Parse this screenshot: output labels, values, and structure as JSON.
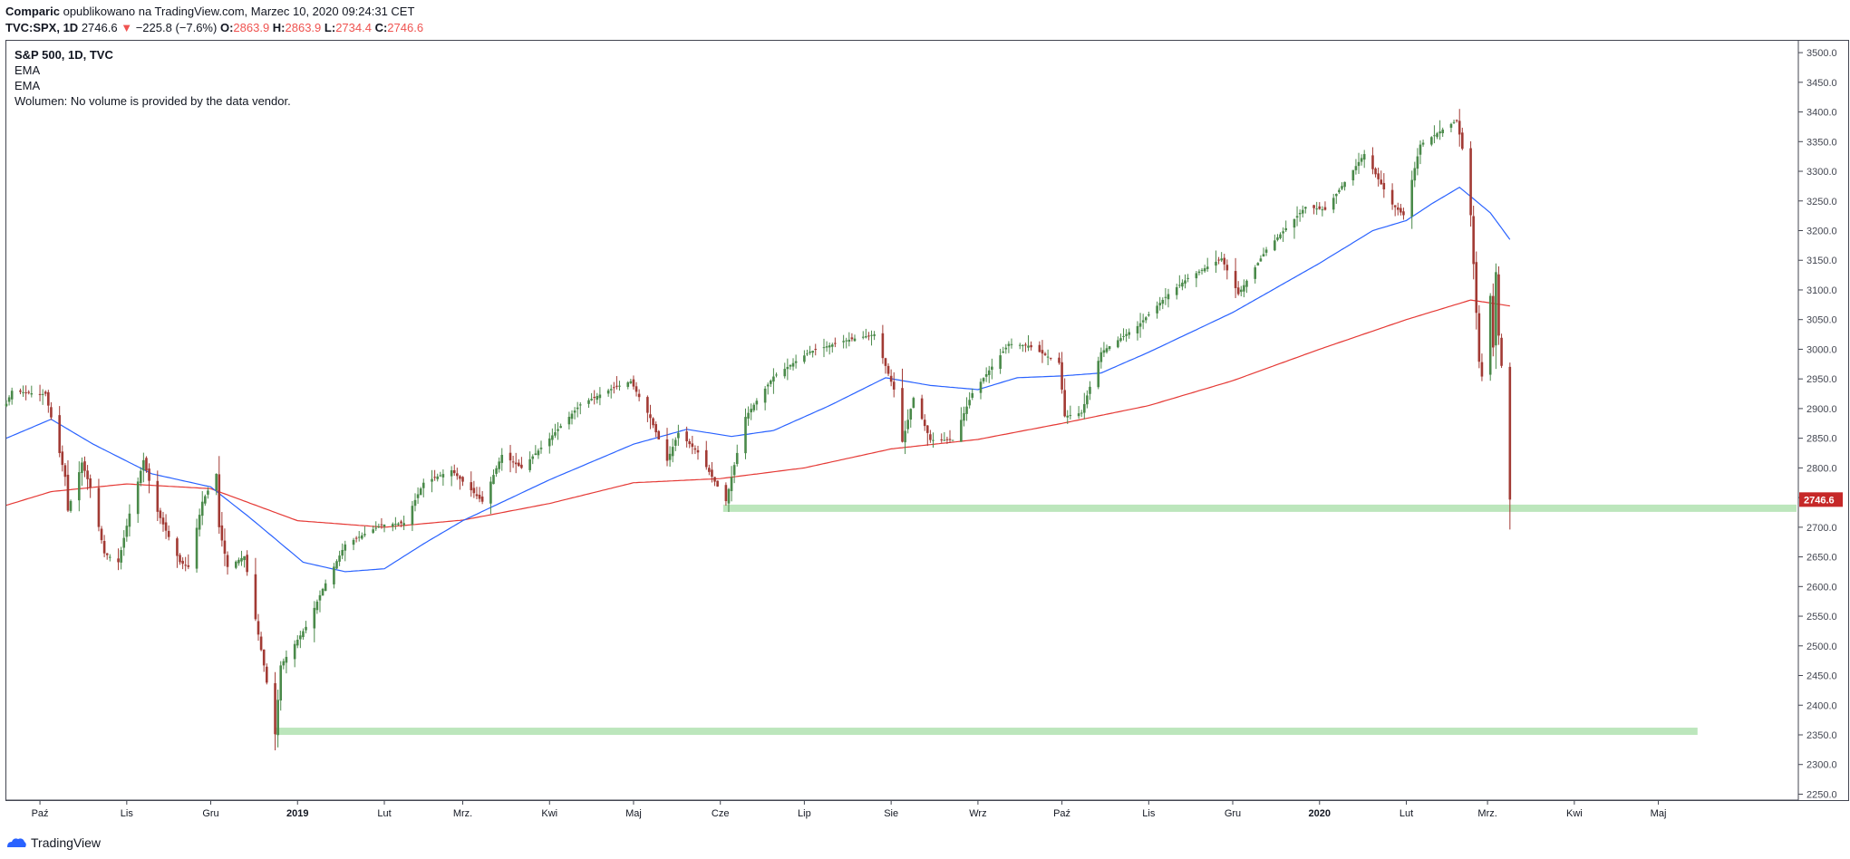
{
  "header": {
    "author": "Comparic",
    "published_text": "opublikowano na TradingView.com, Marzec 10, 2020 09:24:31 CET",
    "symbol": "TVC:SPX, 1D",
    "last": "2746.6",
    "change_arrow": "▼",
    "change": "−225.8 (−7.6%)",
    "open_label": "O:",
    "open": "2863.9",
    "high_label": "H:",
    "high": "2863.9",
    "low_label": "L:",
    "low": "2734.4",
    "close_label": "C:",
    "close": "2746.6"
  },
  "legend": {
    "title": "S&P 500, 1D, TVC",
    "ind1": "EMA",
    "ind2": "EMA",
    "volume": "Wolumen: No volume is provided by the data vendor."
  },
  "brand": {
    "name": "TradingView",
    "icon": "tradingview-logo-icon"
  },
  "colors": {
    "up": "#4a8a4a",
    "down": "#a23a34",
    "ema_fast": "#2962ff",
    "ema_slow": "#e53935",
    "zone": "#a5dea5",
    "price_label_bg": "#c62828"
  },
  "chart_data": {
    "type": "candlestick",
    "instrument": "S&P 500",
    "timeframe": "1D",
    "ylim": [
      2240,
      3520
    ],
    "y_ticks": [
      2250,
      2300,
      2350,
      2400,
      2450,
      2500,
      2550,
      2600,
      2650,
      2700,
      2750,
      2800,
      2850,
      2900,
      2950,
      3000,
      3050,
      3100,
      3150,
      3200,
      3250,
      3300,
      3350,
      3400,
      3450,
      3500
    ],
    "x_range": [
      "2018-09-19",
      "2020-06-20"
    ],
    "x_ticks": [
      {
        "date": "2018-10-01",
        "label": "Paź"
      },
      {
        "date": "2018-11-01",
        "label": "Lis"
      },
      {
        "date": "2018-12-01",
        "label": "Gru"
      },
      {
        "date": "2019-01-01",
        "label": "2019",
        "bold": true
      },
      {
        "date": "2019-02-01",
        "label": "Lut"
      },
      {
        "date": "2019-03-01",
        "label": "Mrz."
      },
      {
        "date": "2019-04-01",
        "label": "Kwi"
      },
      {
        "date": "2019-05-01",
        "label": "Maj"
      },
      {
        "date": "2019-06-01",
        "label": "Cze"
      },
      {
        "date": "2019-07-01",
        "label": "Lip"
      },
      {
        "date": "2019-08-01",
        "label": "Sie"
      },
      {
        "date": "2019-09-01",
        "label": "Wrz"
      },
      {
        "date": "2019-10-01",
        "label": "Paź"
      },
      {
        "date": "2019-11-01",
        "label": "Lis"
      },
      {
        "date": "2019-12-01",
        "label": "Gru"
      },
      {
        "date": "2020-01-01",
        "label": "2020",
        "bold": true
      },
      {
        "date": "2020-02-01",
        "label": "Lut"
      },
      {
        "date": "2020-03-01",
        "label": "Mrz."
      },
      {
        "date": "2020-04-01",
        "label": "Kwi"
      },
      {
        "date": "2020-05-01",
        "label": "Maj"
      }
    ],
    "close_path": [
      [
        "2018-09-19",
        2908
      ],
      [
        "2018-09-21",
        2930
      ],
      [
        "2018-10-01",
        2924
      ],
      [
        "2018-10-03",
        2925
      ],
      [
        "2018-10-05",
        2885
      ],
      [
        "2018-10-10",
        2785
      ],
      [
        "2018-10-11",
        2728
      ],
      [
        "2018-10-16",
        2809
      ],
      [
        "2018-10-19",
        2767
      ],
      [
        "2018-10-24",
        2656
      ],
      [
        "2018-10-29",
        2641
      ],
      [
        "2018-11-02",
        2723
      ],
      [
        "2018-11-07",
        2813
      ],
      [
        "2018-11-12",
        2726
      ],
      [
        "2018-11-20",
        2641
      ],
      [
        "2018-11-23",
        2633
      ],
      [
        "2018-11-28",
        2743
      ],
      [
        "2018-12-03",
        2790
      ],
      [
        "2018-12-04",
        2700
      ],
      [
        "2018-12-07",
        2633
      ],
      [
        "2018-12-13",
        2651
      ],
      [
        "2018-12-17",
        2545
      ],
      [
        "2018-12-20",
        2467
      ],
      [
        "2018-12-24",
        2351
      ],
      [
        "2018-12-26",
        2467
      ],
      [
        "2019-01-04",
        2532
      ],
      [
        "2019-01-10",
        2596
      ],
      [
        "2019-01-18",
        2671
      ],
      [
        "2019-01-31",
        2704
      ],
      [
        "2019-02-08",
        2707
      ],
      [
        "2019-02-15",
        2775
      ],
      [
        "2019-02-25",
        2796
      ],
      [
        "2019-03-08",
        2743
      ],
      [
        "2019-03-15",
        2822
      ],
      [
        "2019-03-22",
        2800
      ],
      [
        "2019-03-29",
        2834
      ],
      [
        "2019-04-12",
        2907
      ],
      [
        "2019-04-23",
        2933
      ],
      [
        "2019-04-30",
        2946
      ],
      [
        "2019-05-07",
        2884
      ],
      [
        "2019-05-13",
        2812
      ],
      [
        "2019-05-17",
        2859
      ],
      [
        "2019-05-24",
        2826
      ],
      [
        "2019-06-03",
        2744
      ],
      [
        "2019-06-10",
        2886
      ],
      [
        "2019-06-20",
        2954
      ],
      [
        "2019-07-03",
        2996
      ],
      [
        "2019-07-15",
        3014
      ],
      [
        "2019-07-26",
        3025
      ],
      [
        "2019-08-02",
        2932
      ],
      [
        "2019-08-05",
        2844
      ],
      [
        "2019-08-09",
        2918
      ],
      [
        "2019-08-15",
        2847
      ],
      [
        "2019-08-23",
        2847
      ],
      [
        "2019-08-30",
        2926
      ],
      [
        "2019-09-12",
        3009
      ],
      [
        "2019-09-19",
        3006
      ],
      [
        "2019-09-30",
        2977
      ],
      [
        "2019-10-02",
        2887
      ],
      [
        "2019-10-08",
        2893
      ],
      [
        "2019-10-15",
        2995
      ],
      [
        "2019-10-28",
        3039
      ],
      [
        "2019-11-08",
        3093
      ],
      [
        "2019-11-15",
        3120
      ],
      [
        "2019-11-27",
        3153
      ],
      [
        "2019-12-03",
        3093
      ],
      [
        "2019-12-13",
        3168
      ],
      [
        "2019-12-27",
        3240
      ],
      [
        "2020-01-03",
        3235
      ],
      [
        "2020-01-17",
        3329
      ],
      [
        "2020-01-27",
        3244
      ],
      [
        "2020-01-31",
        3226
      ],
      [
        "2020-02-06",
        3345
      ],
      [
        "2020-02-19",
        3386
      ],
      [
        "2020-02-21",
        3338
      ],
      [
        "2020-02-24",
        3226
      ],
      [
        "2020-02-27",
        2979
      ],
      [
        "2020-02-28",
        2954
      ],
      [
        "2020-03-02",
        3090
      ],
      [
        "2020-03-03",
        3003
      ],
      [
        "2020-03-04",
        3130
      ],
      [
        "2020-03-05",
        3023
      ],
      [
        "2020-03-06",
        2972
      ],
      [
        "2020-03-09",
        2746.6
      ]
    ],
    "ema_fast_path": [
      [
        "2018-09-19",
        2850
      ],
      [
        "2018-10-05",
        2882
      ],
      [
        "2018-10-20",
        2840
      ],
      [
        "2018-11-10",
        2790
      ],
      [
        "2018-12-01",
        2768
      ],
      [
        "2018-12-15",
        2716
      ],
      [
        "2019-01-03",
        2641
      ],
      [
        "2019-01-18",
        2625
      ],
      [
        "2019-02-01",
        2630
      ],
      [
        "2019-02-15",
        2672
      ],
      [
        "2019-03-01",
        2711
      ],
      [
        "2019-04-01",
        2780
      ],
      [
        "2019-05-01",
        2840
      ],
      [
        "2019-05-20",
        2865
      ],
      [
        "2019-06-05",
        2853
      ],
      [
        "2019-06-20",
        2863
      ],
      [
        "2019-07-10",
        2905
      ],
      [
        "2019-07-30",
        2952
      ],
      [
        "2019-08-15",
        2939
      ],
      [
        "2019-09-01",
        2932
      ],
      [
        "2019-09-15",
        2952
      ],
      [
        "2019-10-01",
        2955
      ],
      [
        "2019-10-15",
        2960
      ],
      [
        "2019-11-01",
        2995
      ],
      [
        "2019-12-01",
        3062
      ],
      [
        "2020-01-01",
        3145
      ],
      [
        "2020-01-20",
        3200
      ],
      [
        "2020-02-01",
        3217
      ],
      [
        "2020-02-10",
        3245
      ],
      [
        "2020-02-20",
        3273
      ],
      [
        "2020-03-02",
        3230
      ],
      [
        "2020-03-09",
        3185
      ]
    ],
    "ema_slow_path": [
      [
        "2018-09-19",
        2737
      ],
      [
        "2018-10-05",
        2760
      ],
      [
        "2018-11-01",
        2773
      ],
      [
        "2018-12-01",
        2765
      ],
      [
        "2019-01-01",
        2711
      ],
      [
        "2019-02-01",
        2700
      ],
      [
        "2019-03-01",
        2712
      ],
      [
        "2019-04-01",
        2740
      ],
      [
        "2019-05-01",
        2775
      ],
      [
        "2019-06-01",
        2782
      ],
      [
        "2019-07-01",
        2800
      ],
      [
        "2019-08-01",
        2832
      ],
      [
        "2019-09-01",
        2848
      ],
      [
        "2019-10-01",
        2875
      ],
      [
        "2019-11-01",
        2905
      ],
      [
        "2019-12-01",
        2947
      ],
      [
        "2020-01-01",
        3000
      ],
      [
        "2020-02-01",
        3050
      ],
      [
        "2020-02-24",
        3083
      ],
      [
        "2020-03-09",
        3073
      ]
    ],
    "support_zones": [
      {
        "from": "2019-06-02",
        "to": "2020-06-20",
        "value": 2732
      },
      {
        "from": "2018-12-24",
        "to": "2020-05-15",
        "value": 2356
      }
    ],
    "last_price_label": "2746.6"
  }
}
